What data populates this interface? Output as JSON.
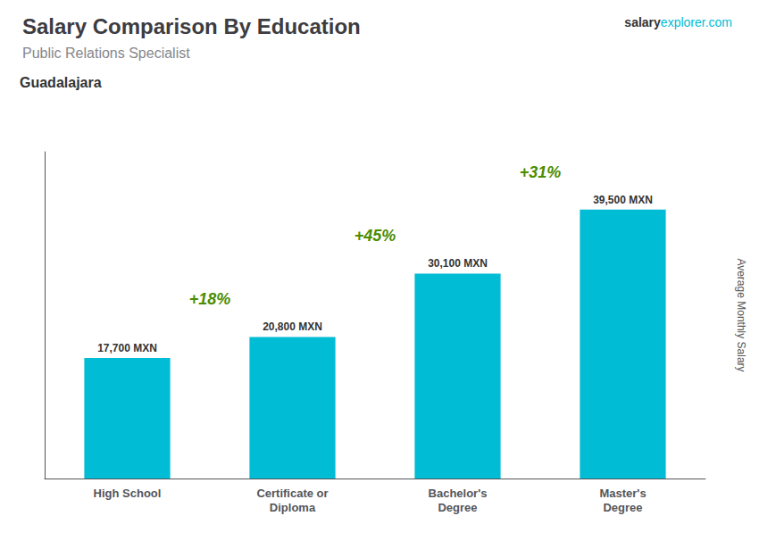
{
  "chart_data": {
    "type": "bar",
    "title": "Salary Comparison By Education",
    "subtitle": "Public Relations Specialist",
    "annotations": [
      "Guadalajara",
      "salary",
      "explorer.com",
      "+18%",
      "+45%",
      "+31%"
    ],
    "ylabel": "Average Monthly Salary",
    "categories": [
      "High School",
      "Certificate or\nDiploma",
      "Bachelor's\nDegree",
      "Master's\nDegree"
    ],
    "values": [
      17700,
      20800,
      30100,
      39500
    ],
    "value_labels": [
      "17,700 MXN",
      "20,800 MXN",
      "30,100 MXN",
      "39,500 MXN"
    ],
    "data_labels": true,
    "color": "#00bcd4",
    "ylim": [
      0,
      48000
    ],
    "grid": false,
    "tick_labels": "x"
  }
}
